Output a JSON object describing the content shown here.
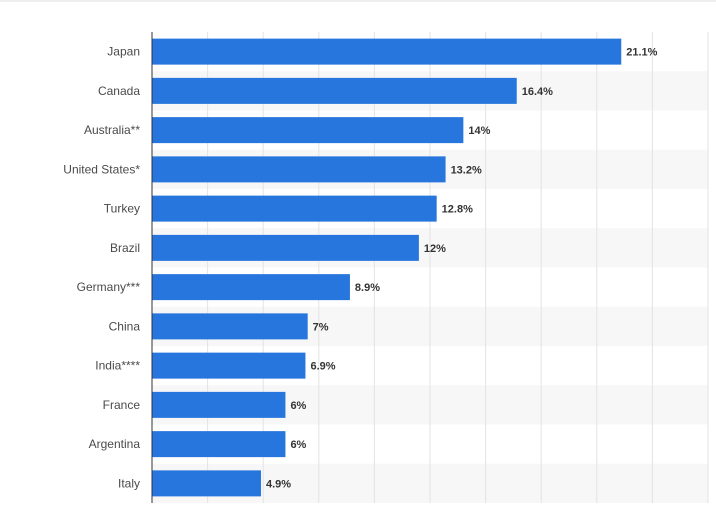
{
  "chart_data": {
    "type": "bar",
    "orientation": "horizontal",
    "categories": [
      "Japan",
      "Canada",
      "Australia**",
      "United States*",
      "Turkey",
      "Brazil",
      "Germany***",
      "China",
      "India****",
      "France",
      "Argentina",
      "Italy"
    ],
    "values": [
      21.1,
      16.4,
      14,
      13.2,
      12.8,
      12,
      8.9,
      7,
      6.9,
      6,
      6,
      4.9
    ],
    "value_labels": [
      "21.1%",
      "16.4%",
      "14%",
      "13.2%",
      "12.8%",
      "12%",
      "8.9%",
      "7%",
      "6.9%",
      "6%",
      "6%",
      "4.9%"
    ],
    "title": "",
    "xlabel": "",
    "ylabel": "",
    "xlim": [
      0,
      25
    ],
    "grid": true,
    "colors": {
      "bar": "#2776dd",
      "stripe": "#f7f7f7",
      "grid": "#e3e3e3",
      "axis": "#333333"
    }
  }
}
